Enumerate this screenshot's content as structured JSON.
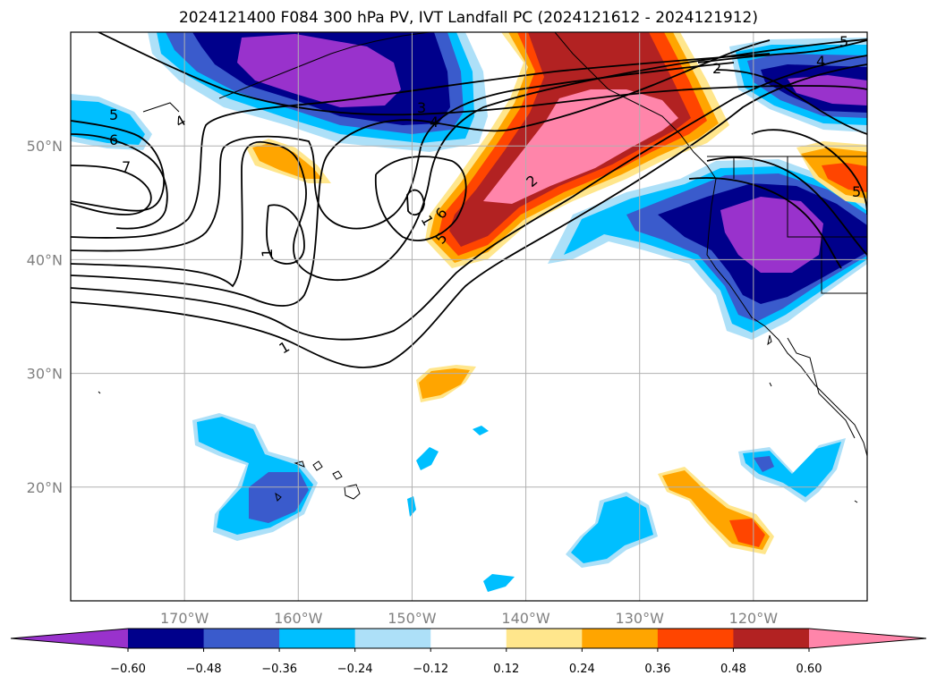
{
  "title": "2024121400 F084 300 hPa PV, IVT Landfall PC (2024121612 - 2024121912)",
  "map": {
    "lon_range": [
      -180,
      -110
    ],
    "lat_range": [
      10,
      60
    ],
    "lon_ticks": [
      {
        "value": -170,
        "label": "170°W"
      },
      {
        "value": -160,
        "label": "160°W"
      },
      {
        "value": -150,
        "label": "150°W"
      },
      {
        "value": -140,
        "label": "140°W"
      },
      {
        "value": -130,
        "label": "130°W"
      },
      {
        "value": -120,
        "label": "120°W"
      }
    ],
    "lat_ticks": [
      {
        "value": 20,
        "label": "20°N"
      },
      {
        "value": 30,
        "label": "30°N"
      },
      {
        "value": 40,
        "label": "40°N"
      },
      {
        "value": 50,
        "label": "50°N"
      }
    ],
    "gridlines": true,
    "contour_labels": [
      "5",
      "6",
      "7",
      "4",
      "3",
      "4",
      "1",
      "1",
      "1",
      "6",
      "5",
      "2",
      "2",
      "4",
      "5",
      "5"
    ]
  },
  "colorbar": {
    "ticks": [
      "−0.60",
      "−0.48",
      "−0.36",
      "−0.24",
      "−0.12",
      "0.12",
      "0.24",
      "0.36",
      "0.48",
      "0.60"
    ],
    "colors": [
      "#9932CC",
      "#00008B",
      "#3A5BCC",
      "#00BFFF",
      "#ADE0F8",
      "#FFFFFF",
      "#FFE68C",
      "#FFA500",
      "#FF4500",
      "#B22222",
      "#FF85AA"
    ]
  },
  "colors": {
    "deep_purple": "#9932CC",
    "navy": "#00008B",
    "royal_blue": "#3A5BCC",
    "deep_sky": "#00BFFF",
    "light_blue": "#ADE0F8",
    "light_yellow": "#FFE68C",
    "orange": "#FFA500",
    "orange_red": "#FF4500",
    "firebrick": "#B22222",
    "pink": "#FF85AA"
  }
}
